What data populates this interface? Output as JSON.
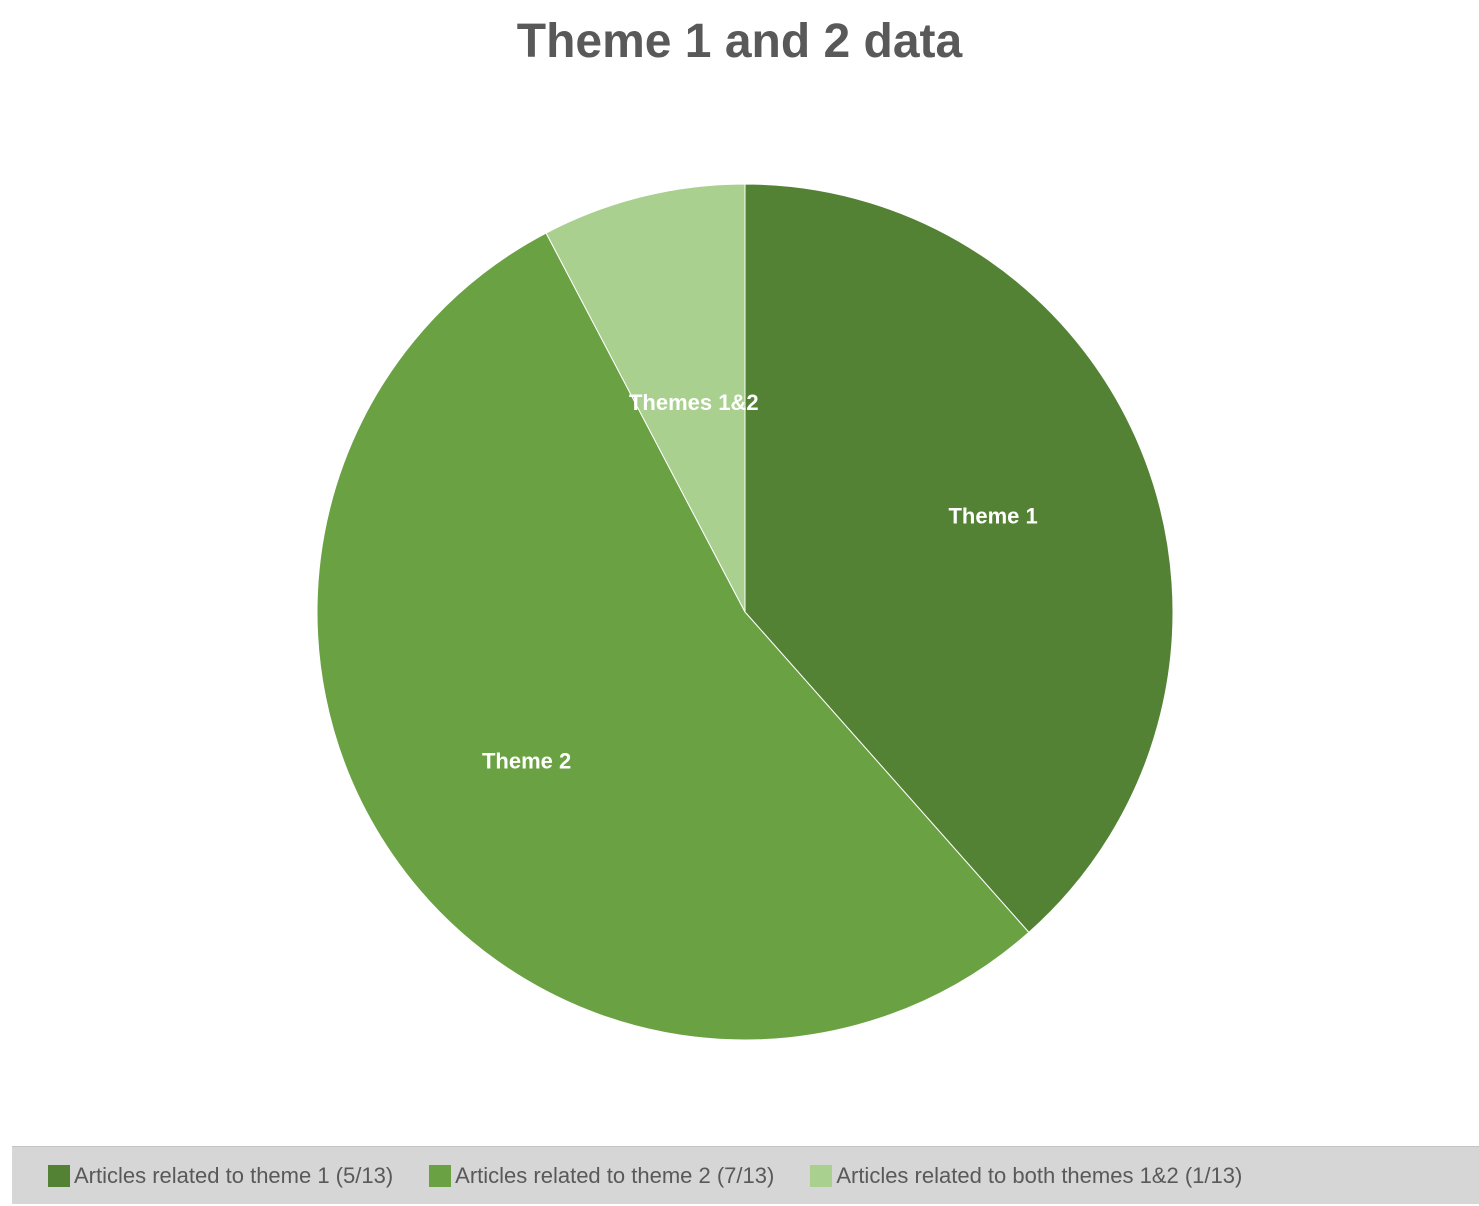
{
  "chart_data": {
    "type": "pie",
    "title": "Theme 1 and 2 data",
    "categories": [
      "Theme 1",
      "Theme 2",
      "Themes 1&2"
    ],
    "values": [
      5,
      7,
      1
    ],
    "total": 13,
    "colors": [
      "#548235",
      "#6aa143",
      "#a9d08e"
    ],
    "start_angle_deg": 0,
    "direction": "clockwise",
    "data_labels": [
      "Theme 1",
      "Theme 2",
      "Themes 1&2"
    ],
    "data_label_color": "#ffffff",
    "legend": {
      "placement": "bottom",
      "entries": [
        "Articles related to theme 1 (5/13)",
        "Articles related to theme 2 (7/13)",
        "Articles related to both themes 1&2 (1/13)"
      ]
    }
  }
}
